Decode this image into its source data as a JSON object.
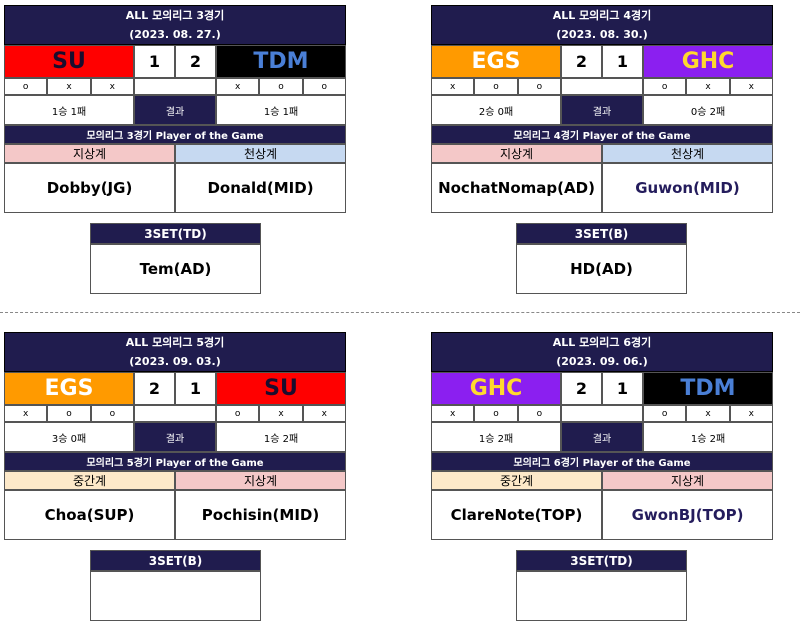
{
  "colors": {
    "navy": "#201c4e",
    "SU": {
      "bg": "#ff0000",
      "fg": "#1a0d2e"
    },
    "TDM": {
      "bg": "#000000",
      "fg": "#4a7fd6"
    },
    "EGS": {
      "bg": "#ff9a00",
      "fg": "#ffffff"
    },
    "GHC": {
      "bg": "#8b1ff0",
      "fg": "#ffd92e"
    },
    "lane_jisang": "#f4c8c8",
    "lane_cheonsang": "#c6d9f1",
    "lane_junggan": "#fde9c9"
  },
  "cards": [
    {
      "title": "ALL 모의리그 3경기",
      "date": "(2023. 08. 27.)",
      "left": {
        "name": "SU",
        "score": "1",
        "marks": [
          "o",
          "x",
          "x"
        ],
        "record": "1승 1패"
      },
      "right": {
        "name": "TDM",
        "score": "2",
        "marks": [
          "x",
          "o",
          "o"
        ],
        "record": "1승 1패"
      },
      "result_label": "결과",
      "potg_title": "모의리그 3경기 Player of the Game",
      "lanes": [
        "지상계",
        "천상계"
      ],
      "players": [
        "Dobby(JG)",
        "Donald(MID)"
      ],
      "set_title": "3SET(TD)",
      "set_player": "Tem(AD)"
    },
    {
      "title": "ALL 모의리그 4경기",
      "date": "(2023. 08. 30.)",
      "left": {
        "name": "EGS",
        "score": "2",
        "marks": [
          "x",
          "o",
          "o"
        ],
        "record": "2승 0패"
      },
      "right": {
        "name": "GHC",
        "score": "1",
        "marks": [
          "o",
          "x",
          "x"
        ],
        "record": "0승 2패"
      },
      "result_label": "결과",
      "potg_title": "모의리그 4경기 Player of the Game",
      "lanes": [
        "지상계",
        "천상계"
      ],
      "players": [
        "NochatNomap(AD)",
        "Guwon(MID)"
      ],
      "set_title": "3SET(B)",
      "set_player": "HD(AD)"
    },
    {
      "title": "ALL 모의리그 5경기",
      "date": "(2023. 09. 03.)",
      "left": {
        "name": "EGS",
        "score": "2",
        "marks": [
          "x",
          "o",
          "o"
        ],
        "record": "3승 0패"
      },
      "right": {
        "name": "SU",
        "score": "1",
        "marks": [
          "o",
          "x",
          "x"
        ],
        "record": "1승 2패"
      },
      "result_label": "결과",
      "potg_title": "모의리그 5경기 Player of the Game",
      "lanes": [
        "중간계",
        "지상계"
      ],
      "players": [
        "Choa(SUP)",
        "Pochisin(MID)"
      ],
      "set_title": "3SET(B)",
      "set_player": ""
    },
    {
      "title": "ALL 모의리그 6경기",
      "date": "(2023. 09. 06.)",
      "left": {
        "name": "GHC",
        "score": "2",
        "marks": [
          "x",
          "o",
          "o"
        ],
        "record": "1승 2패"
      },
      "right": {
        "name": "TDM",
        "score": "1",
        "marks": [
          "o",
          "x",
          "x"
        ],
        "record": "1승 2패"
      },
      "result_label": "결과",
      "potg_title": "모의리그 6경기 Player of the Game",
      "lanes": [
        "중간계",
        "지상계"
      ],
      "players": [
        "ClareNote(TOP)",
        "GwonBJ(TOP)"
      ],
      "set_title": "3SET(TD)",
      "set_player": ""
    }
  ]
}
